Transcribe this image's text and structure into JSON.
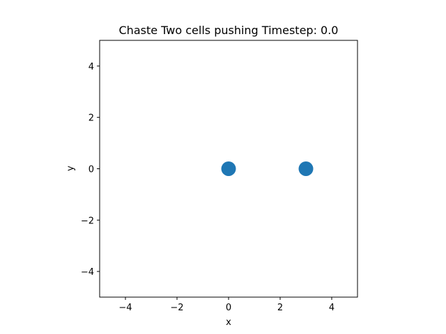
{
  "chart_data": {
    "type": "scatter",
    "title": "Chaste Two cells pushing Timestep: 0.0",
    "xlabel": "x",
    "ylabel": "y",
    "xlim": [
      -5,
      5
    ],
    "ylim": [
      -5,
      5
    ],
    "xticks": [
      -4,
      -2,
      0,
      2,
      4
    ],
    "yticks": [
      -4,
      -2,
      0,
      2,
      4
    ],
    "xtick_labels": [
      "−4",
      "−2",
      "0",
      "2",
      "4"
    ],
    "ytick_labels": [
      "−4",
      "−2",
      "0",
      "2",
      "4"
    ],
    "grid": false,
    "series": [
      {
        "color": "#1f77b4",
        "x": [
          0,
          3
        ],
        "y": [
          0,
          0
        ]
      }
    ]
  }
}
